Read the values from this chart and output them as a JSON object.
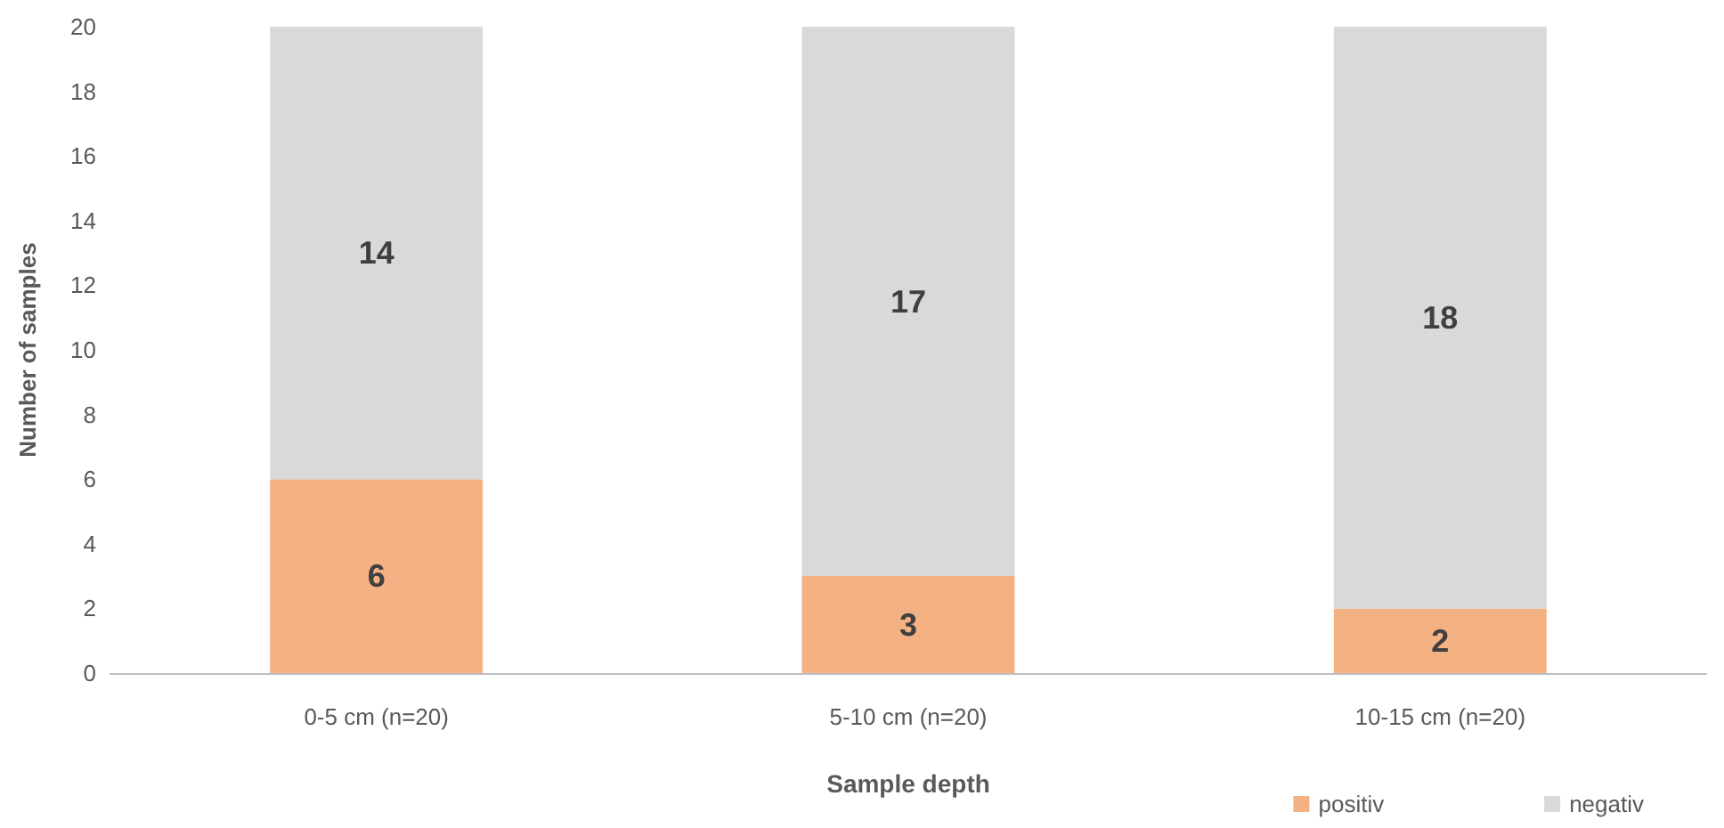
{
  "chart_data": {
    "type": "bar",
    "xlabel": "Sample depth",
    "ylabel": "Number of samples",
    "categories": [
      "0-5 cm (n=20)",
      "5-10 cm (n=20)",
      "10-15 cm (n=20)"
    ],
    "series": [
      {
        "name": "positiv",
        "color": "#f4b183",
        "values": [
          6,
          3,
          2
        ]
      },
      {
        "name": "negativ",
        "color": "#d9d9d9",
        "values": [
          14,
          17,
          18
        ]
      }
    ],
    "stacked": true,
    "ylim": [
      0,
      20
    ],
    "yticks": [
      0,
      2,
      4,
      6,
      8,
      10,
      12,
      14,
      16,
      18,
      20
    ],
    "data_labels": true,
    "grid": false,
    "legend": "bottom right"
  }
}
